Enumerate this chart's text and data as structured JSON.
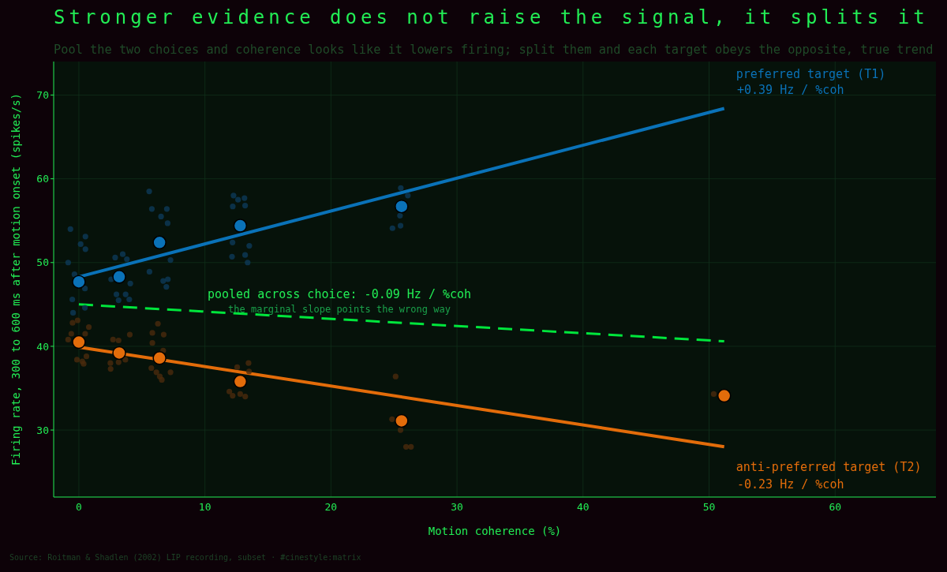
{
  "chart_data": {
    "type": "scatter",
    "title": "Stronger evidence does not raise the signal, it splits it",
    "subtitle": "Pool the two choices and coherence looks like it lowers firing; split them and each target obeys the opposite, true trend",
    "xlabel": "Motion coherence (%)",
    "ylabel": "Firing rate, 300 to 600 ms after motion onset (spikes/s)",
    "xlim": [
      -2,
      68
    ],
    "xticks": [
      0,
      10,
      20,
      30,
      40,
      50,
      60
    ],
    "ylim": [
      22,
      74
    ],
    "yticks": [
      30,
      40,
      50,
      60,
      70
    ],
    "grid": true,
    "series": [
      {
        "marker": "circle",
        "color": "#0c3a58",
        "x": [
          -0.67,
          0.52,
          0.14,
          0.52,
          -0.85,
          -0.35,
          0.48,
          -0.52,
          -0.46,
          0.48,
          2.88,
          3.48,
          3.81,
          2.56,
          4.08,
          2.98,
          3.71,
          3.15,
          4.0,
          5.58,
          5.79,
          6.52,
          6.98,
          7.04,
          7.27,
          5.6,
          6.69,
          7.06,
          6.94,
          12.27,
          12.63,
          13.14,
          12.21,
          13.19,
          12.19,
          13.52,
          12.15,
          13.19,
          13.39,
          25.54,
          26.1,
          25.48,
          25.52,
          24.88
        ],
        "values": [
          54.0,
          53.1,
          52.2,
          51.6,
          50.0,
          48.6,
          46.9,
          45.6,
          44.0,
          44.6,
          50.6,
          51.0,
          50.4,
          48.0,
          47.5,
          46.2,
          46.2,
          45.5,
          45.6,
          58.5,
          56.4,
          55.5,
          56.4,
          54.7,
          50.3,
          48.9,
          47.8,
          48.0,
          47.1,
          58.0,
          57.5,
          57.7,
          56.7,
          56.8,
          52.4,
          52.0,
          50.7,
          50.9,
          50.0,
          58.9,
          58.0,
          55.6,
          54.4,
          54.1
        ]
      },
      {
        "marker": "circle",
        "color": "#4a2a0c",
        "x": [
          -0.1,
          -0.5,
          0.79,
          -0.6,
          0.5,
          -0.85,
          -0.15,
          0.27,
          0.38,
          0.6,
          2.71,
          3.15,
          4.04,
          2.5,
          2.52,
          3.15,
          3.69,
          6.27,
          5.83,
          6.73,
          5.83,
          6.69,
          5.75,
          6.15,
          6.42,
          6.58,
          7.27,
          13.46,
          12.56,
          13.5,
          11.94,
          12.2,
          13.2,
          12.8,
          25.13,
          24.85,
          25.52,
          25.96,
          26.35,
          50.37
        ],
        "values": [
          43.1,
          42.8,
          42.3,
          41.5,
          41.5,
          40.8,
          38.4,
          38.2,
          37.9,
          38.8,
          40.8,
          40.7,
          41.4,
          38.0,
          37.3,
          38.1,
          38.4,
          42.7,
          41.6,
          41.4,
          40.4,
          39.5,
          37.4,
          36.9,
          36.4,
          36.0,
          36.9,
          38.0,
          37.5,
          37.0,
          34.6,
          34.1,
          34.0,
          34.3,
          36.4,
          31.3,
          30.0,
          28.0,
          28.0,
          34.3
        ]
      },
      {
        "type": "line",
        "name": "preferred target (T1)",
        "color": "#0a72b8",
        "x": [
          0,
          51.2
        ],
        "values": [
          48.3,
          68.4
        ]
      },
      {
        "type": "line",
        "name": "anti-preferred target (T2)",
        "color": "#e36c0a",
        "x": [
          0,
          51.2
        ],
        "values": [
          39.9,
          28.0
        ]
      },
      {
        "type": "line",
        "color": "#00e63c",
        "line_style": "dashed",
        "x": [
          0,
          51.2
        ],
        "values": [
          45.0,
          40.6
        ]
      },
      {
        "marker": "circle",
        "color": "#0a72b8",
        "x": [
          0,
          3.2,
          6.4,
          12.8,
          25.6
        ],
        "values": [
          47.7,
          48.3,
          52.4,
          54.4,
          56.7
        ]
      },
      {
        "marker": "circle",
        "color": "#e36c0a",
        "x": [
          0,
          3.2,
          6.4,
          12.8,
          25.6,
          51.2
        ],
        "values": [
          40.5,
          39.2,
          38.6,
          35.8,
          31.1,
          34.1
        ]
      }
    ],
    "annotations": [
      "+0.39 Hz / %coh",
      "-0.23 Hz / %coh",
      "pooled across choice: -0.09 Hz / %coh",
      "the marginal slope points the wrong way",
      "Source: Roitman & Shadlen (2002) LIP recording, subset  ·  #cinestyle:matrix"
    ]
  }
}
